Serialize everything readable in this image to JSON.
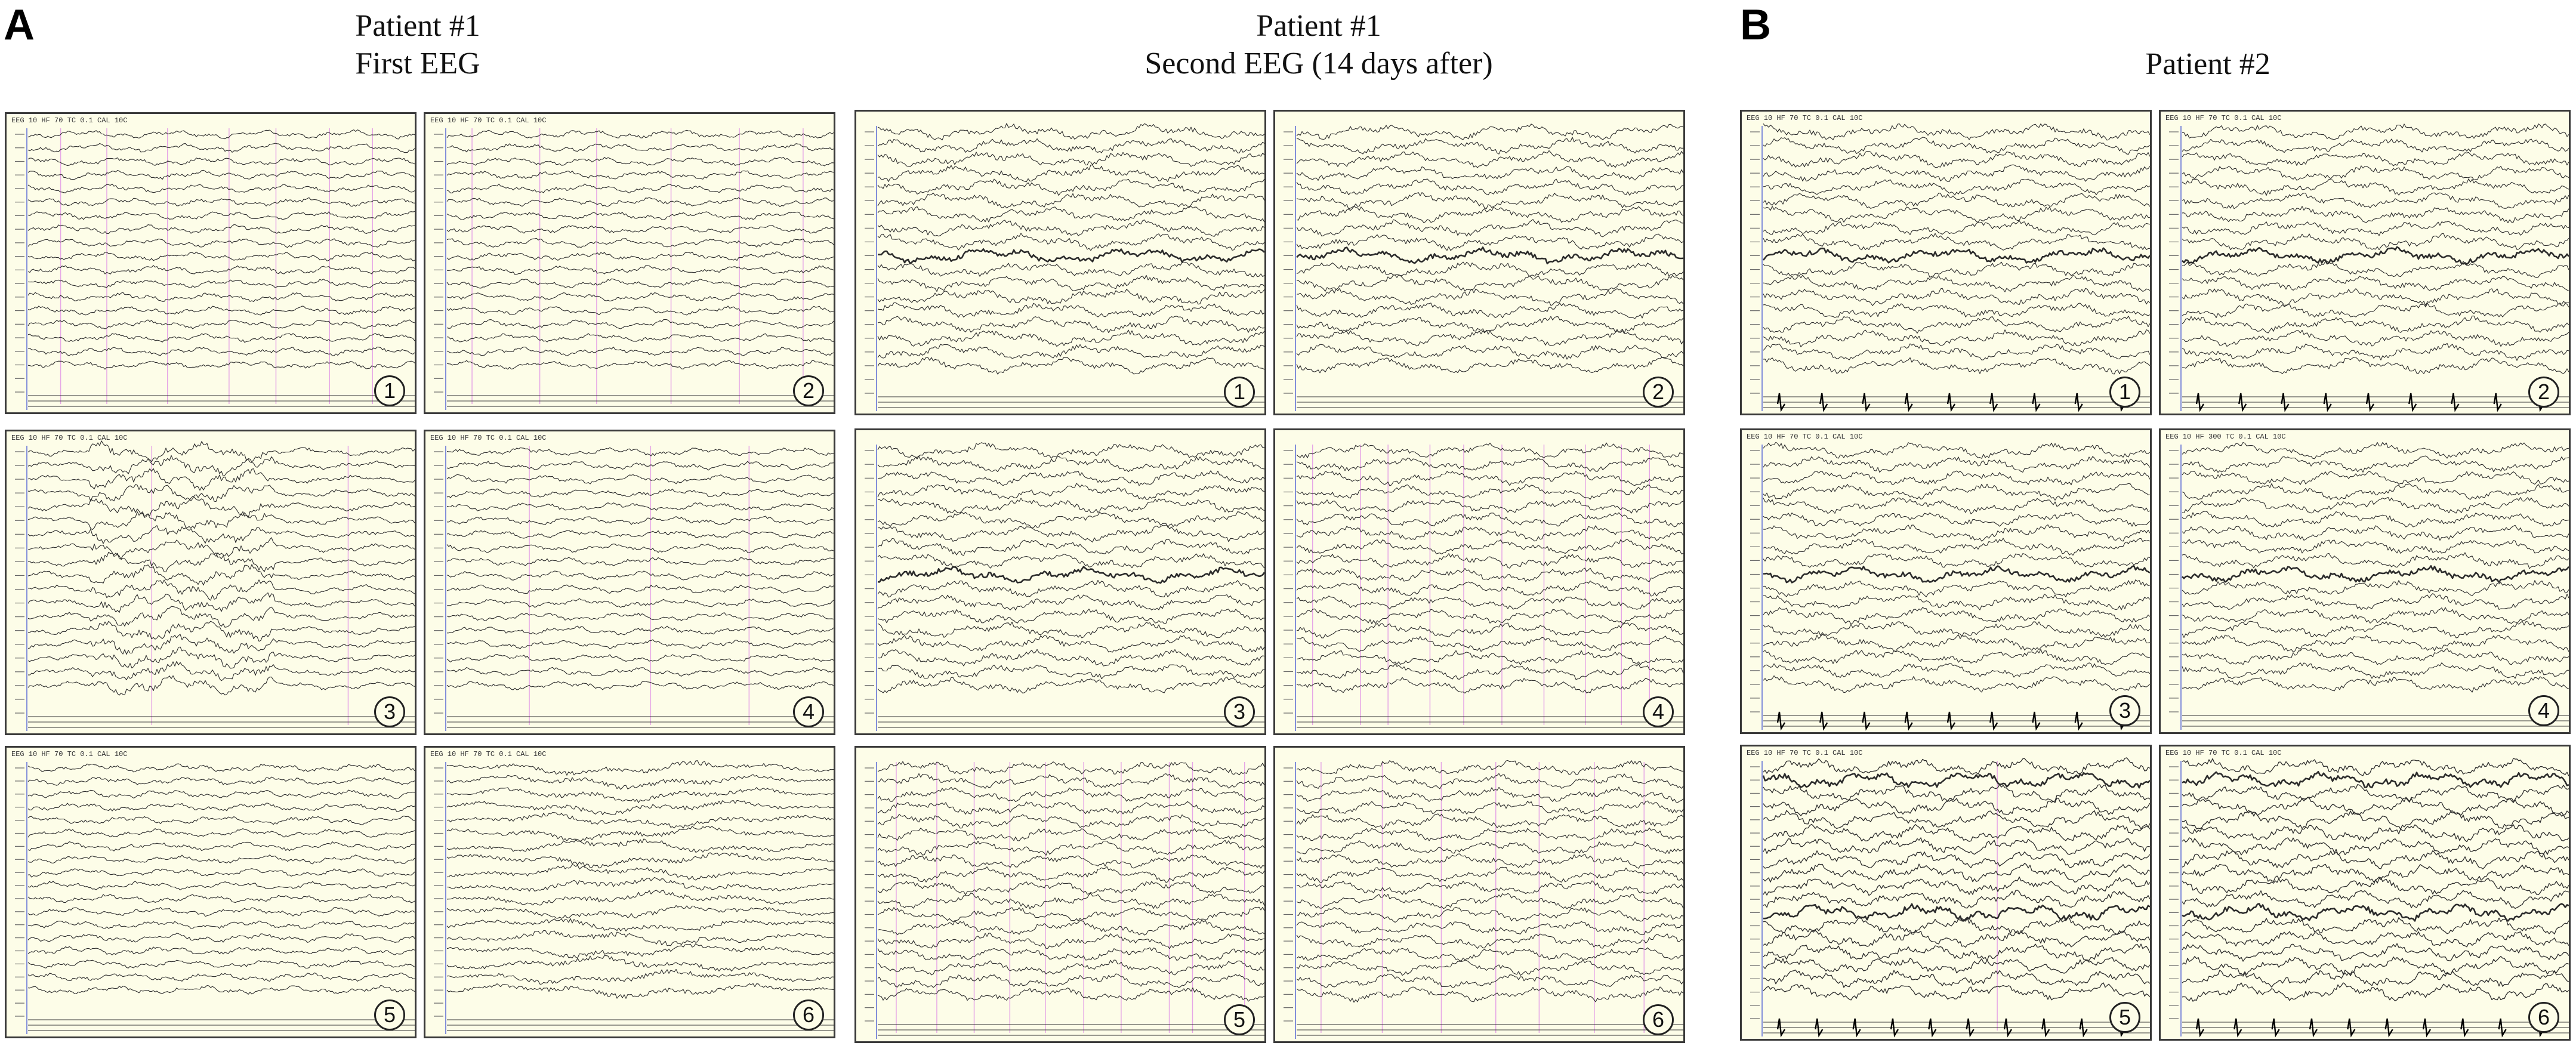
{
  "figure": {
    "sections": [
      {
        "letter": "A"
      },
      {
        "letter": "B"
      }
    ],
    "groups": [
      {
        "title_lines": [
          "Patient #1",
          "First EEG"
        ]
      },
      {
        "title_lines": [
          "Patient #1",
          "Second EEG (14 days after)"
        ]
      },
      {
        "title_lines": [
          "Patient #2"
        ]
      }
    ],
    "panels": [
      {
        "group": 0,
        "number": "1",
        "header": "EEG 10  HF 70  TC 0.1  CAL 10C",
        "style": "regular",
        "markers": 7,
        "spikes": 0
      },
      {
        "group": 0,
        "number": "2",
        "header": "EEG 10  HF 70  TC 0.1  CAL 10C",
        "style": "regular",
        "markers": 6,
        "spikes": 0
      },
      {
        "group": 0,
        "number": "3",
        "header": "EEG 10  HF 70  TC 0.1  CAL 10C",
        "style": "burst",
        "markers": 2,
        "spikes": 0
      },
      {
        "group": 0,
        "number": "4",
        "header": "EEG 10  HF 70  TC 0.1  CAL 10C",
        "style": "regular",
        "markers": 3,
        "spikes": 0
      },
      {
        "group": 0,
        "number": "5",
        "header": "EEG 10  HF 70  TC 0.1  CAL 10C",
        "style": "regular",
        "markers": 0,
        "spikes": 0
      },
      {
        "group": 0,
        "number": "6",
        "header": "EEG 10  HF 70  TC 0.1  CAL 10C",
        "style": "slow",
        "markers": 0,
        "spikes": 0
      },
      {
        "group": 1,
        "number": "1",
        "header": "",
        "style": "dense",
        "markers": 0,
        "spikes": 0
      },
      {
        "group": 1,
        "number": "2",
        "header": "",
        "style": "dense",
        "markers": 0,
        "spikes": 0
      },
      {
        "group": 1,
        "number": "3",
        "header": "",
        "style": "dense",
        "markers": 0,
        "spikes": 0
      },
      {
        "group": 1,
        "number": "4",
        "header": "",
        "style": "periodic",
        "markers": 10,
        "spikes": 0
      },
      {
        "group": 1,
        "number": "5",
        "header": "",
        "style": "periodic",
        "markers": 10,
        "spikes": 0
      },
      {
        "group": 1,
        "number": "6",
        "header": "",
        "style": "periodic",
        "markers": 7,
        "spikes": 0
      },
      {
        "group": 2,
        "number": "1",
        "header": "EEG 10  HF 70  TC 0.1  CAL 10C",
        "style": "dense",
        "markers": 0,
        "spikes": 9
      },
      {
        "group": 2,
        "number": "2",
        "header": "EEG 10  HF 70  TC 0.1  CAL 10C",
        "style": "dense",
        "markers": 0,
        "spikes": 9
      },
      {
        "group": 2,
        "number": "3",
        "header": "EEG 10  HF 70  TC 0.1  CAL 10C",
        "style": "dense",
        "markers": 0,
        "spikes": 9
      },
      {
        "group": 2,
        "number": "4",
        "header": "EEG 10  HF 300  TC 0.1  CAL 10C",
        "style": "dense",
        "markers": 0,
        "spikes": 0
      },
      {
        "group": 2,
        "number": "5",
        "header": "EEG 10  HF 70  TC 0.1  CAL 10C",
        "style": "heavy",
        "markers": 1,
        "spikes": 10
      },
      {
        "group": 2,
        "number": "6",
        "header": "EEG 10  HF 70  TC 0.1  CAL 10C",
        "style": "heavy",
        "markers": 0,
        "spikes": 10
      }
    ]
  },
  "colors": {
    "trace": "#2b2b2b",
    "marker": "#e6a6e6",
    "axis": "#5b6bd6",
    "panel_bg": "#fdfde8"
  }
}
